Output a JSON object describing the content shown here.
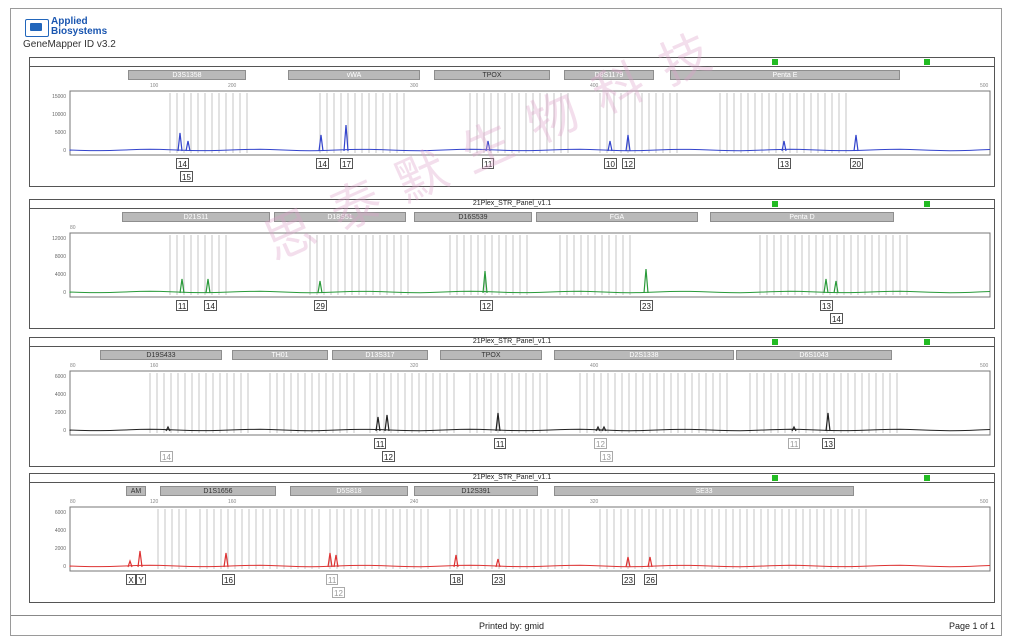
{
  "header": {
    "brand_line1": "Applied",
    "brand_line2": "Biosystems",
    "app_version": "GeneMapper ID v3.2"
  },
  "panels": [
    {
      "title": "",
      "scale": [
        "",
        "100",
        "200",
        "300",
        "400",
        "500"
      ],
      "yticks": [
        "15000",
        "10000",
        "5000",
        "0"
      ],
      "markers": [
        "D3S1358",
        "vWA",
        "TPOX",
        "D8S1179",
        "Penta E"
      ],
      "color": "#3344cc",
      "alleles": [
        {
          "label": "14",
          "row": 0
        },
        {
          "label": "15",
          "row": 1
        },
        {
          "label": "14",
          "row": 0
        },
        {
          "label": "17",
          "row": 0
        },
        {
          "label": "11",
          "row": 0
        },
        {
          "label": "10",
          "row": 0
        },
        {
          "label": "12",
          "row": 0
        },
        {
          "label": "13",
          "row": 0
        },
        {
          "label": "20",
          "row": 0
        }
      ]
    },
    {
      "title": "21Plex_STR_Panel_v1.1",
      "scale": [
        "80",
        "",
        "",
        "",
        "",
        ""
      ],
      "yticks": [
        "12000",
        "8000",
        "4000",
        "0"
      ],
      "markers": [
        "D21S11",
        "D18S51",
        "D16S539",
        "FGA",
        "Penta D"
      ],
      "color": "#2a9a3a",
      "alleles": [
        {
          "label": "11",
          "row": 0
        },
        {
          "label": "14",
          "row": 0
        },
        {
          "label": "29",
          "row": 0
        },
        {
          "label": "12",
          "row": 0
        },
        {
          "label": "23",
          "row": 0
        },
        {
          "label": "13",
          "row": 0
        },
        {
          "label": "14",
          "row": 1
        }
      ]
    },
    {
      "title": "21Plex_STR_Panel_v1.1",
      "scale": [
        "80",
        "160",
        "",
        "320",
        "400",
        "500"
      ],
      "yticks": [
        "6000",
        "4000",
        "2000",
        "0"
      ],
      "markers": [
        "D19S433",
        "TH01",
        "D13S317",
        "TPOX",
        "D2S1338",
        "D6S1043"
      ],
      "color": "#222222",
      "alleles": [
        {
          "label": "14",
          "row": 1,
          "faded": true
        },
        {
          "label": "11",
          "row": 0
        },
        {
          "label": "12",
          "row": 1
        },
        {
          "label": "11",
          "row": 0
        },
        {
          "label": "12",
          "row": 0,
          "faded": true
        },
        {
          "label": "13",
          "row": 1,
          "faded": true
        },
        {
          "label": "11",
          "row": 0,
          "faded": true
        },
        {
          "label": "13",
          "row": 0
        }
      ]
    },
    {
      "title": "21Plex_STR_Panel_v1.1",
      "scale": [
        "80",
        "120",
        "160",
        "240",
        "320",
        "500"
      ],
      "yticks": [
        "6000",
        "4000",
        "2000",
        "0"
      ],
      "markers": [
        "AM",
        "D1S1656",
        "D5S818",
        "D12S391",
        "SE33"
      ],
      "color": "#dd3333",
      "alleles": [
        {
          "label": "X",
          "row": 0
        },
        {
          "label": "Y",
          "row": 0
        },
        {
          "label": "16",
          "row": 0
        },
        {
          "label": "11",
          "row": 0,
          "faded": true
        },
        {
          "label": "12",
          "row": 1,
          "faded": true
        },
        {
          "label": "18",
          "row": 0
        },
        {
          "label": "23",
          "row": 0
        },
        {
          "label": "23",
          "row": 0
        },
        {
          "label": "26",
          "row": 0
        }
      ]
    }
  ],
  "watermark": "思泰默生物科技",
  "footer": {
    "printed_by": "Printed by: gmid",
    "page": "Page 1 of 1"
  }
}
